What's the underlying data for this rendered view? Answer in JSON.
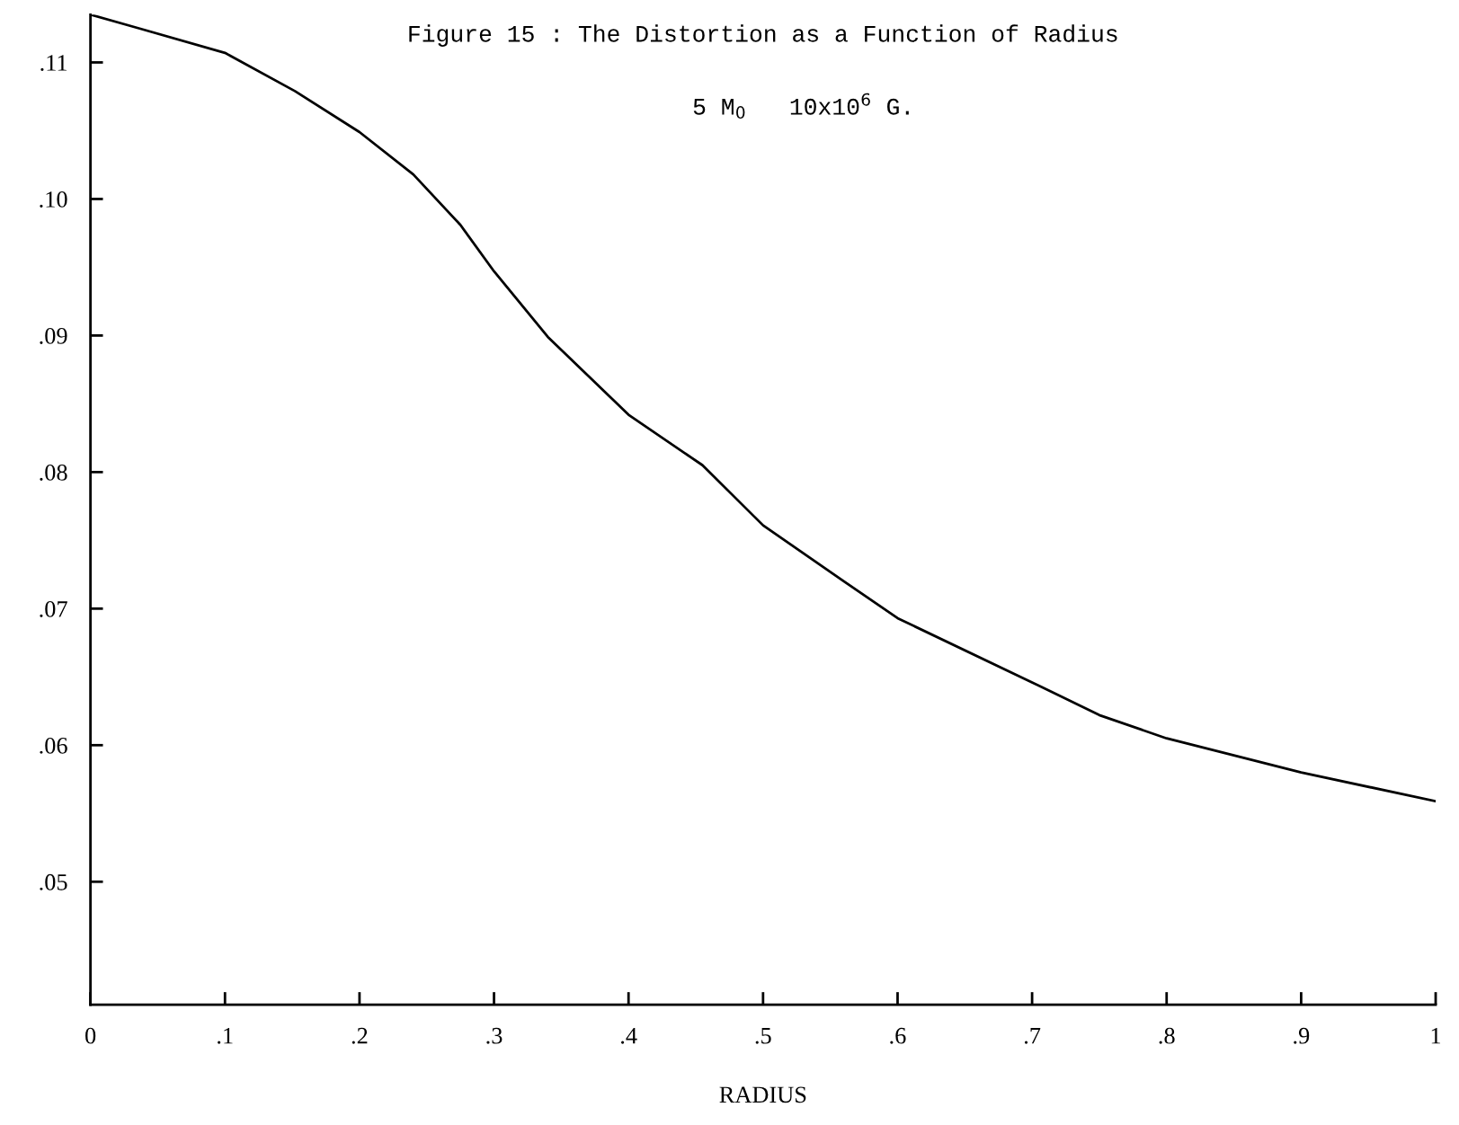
{
  "chart_data": {
    "type": "line",
    "title": "Figure 15 : The Distortion as a Function of Radius",
    "subtitle": "5 M$_{0}$   10x10$^{6}$ G.",
    "xlabel": "RADIUS",
    "x": [
      0,
      0.036,
      0.1,
      0.152,
      0.2,
      0.24,
      0.275,
      0.3,
      0.34,
      0.4,
      0.455,
      0.5,
      0.56,
      0.6,
      0.7,
      0.75,
      0.8,
      0.9,
      1.0
    ],
    "series": [
      {
        "color": "#000000",
        "values": [
          0.1135,
          0.1125,
          0.1107,
          0.1079,
          0.1049,
          0.1018,
          0.0981,
          0.0947,
          0.0899,
          0.0842,
          0.0805,
          0.0761,
          0.072,
          0.0693,
          0.0646,
          0.0622,
          0.0605,
          0.058,
          0.0559
        ]
      }
    ],
    "xlim": [
      0,
      1.0
    ],
    "ylim": [
      0.041,
      0.1135
    ],
    "xticks": [
      {
        "value": 0,
        "label": "0"
      },
      {
        "value": 0.1,
        "label": ".1"
      },
      {
        "value": 0.2,
        "label": ".2"
      },
      {
        "value": 0.3,
        "label": ".3"
      },
      {
        "value": 0.4,
        "label": ".4"
      },
      {
        "value": 0.5,
        "label": ".5"
      },
      {
        "value": 0.6,
        "label": ".6"
      },
      {
        "value": 0.7,
        "label": ".7"
      },
      {
        "value": 0.8,
        "label": ".8"
      },
      {
        "value": 0.9,
        "label": ".9"
      },
      {
        "value": 1.0,
        "label": "1"
      }
    ],
    "yticks": [
      {
        "value": 0.05,
        "label": ".05"
      },
      {
        "value": 0.06,
        "label": ".06"
      },
      {
        "value": 0.07,
        "label": ".07"
      },
      {
        "value": 0.08,
        "label": ".08"
      },
      {
        "value": 0.09,
        "label": ".09"
      },
      {
        "value": 0.1,
        "label": ".10"
      },
      {
        "value": 0.11,
        "label": ".11"
      }
    ],
    "grid": false,
    "legend": false,
    "marker": "none",
    "line_style": "solid"
  }
}
